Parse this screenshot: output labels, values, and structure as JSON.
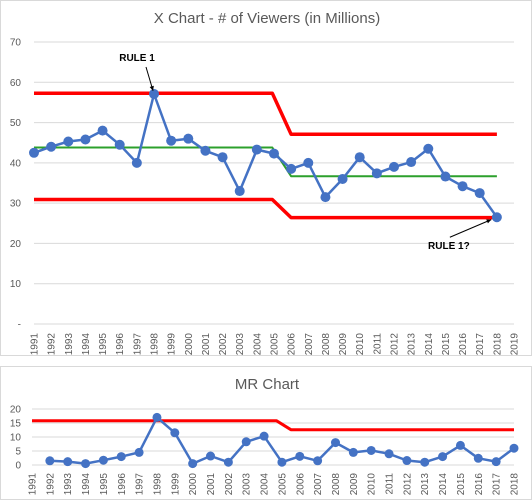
{
  "colors": {
    "data": "#4472c4",
    "limits": "#ff0000",
    "center": "#2ca02c",
    "grid": "#d9d9d9",
    "text": "#595959"
  },
  "chart_data": [
    {
      "type": "line",
      "title": "X Chart - # of Viewers (in Millions)",
      "x_ticks": [
        "1991",
        "1992",
        "1993",
        "1994",
        "1995",
        "1996",
        "1997",
        "1998",
        "1999",
        "2000",
        "2001",
        "2002",
        "2003",
        "2004",
        "2005",
        "2006",
        "2007",
        "2008",
        "2009",
        "2010",
        "2011",
        "2012",
        "2013",
        "2014",
        "2015",
        "2016",
        "2017",
        "2018",
        "2019"
      ],
      "y_ticks": [
        "-",
        "10",
        "20",
        "30",
        "40",
        "50",
        "60",
        "70"
      ],
      "ylim": [
        0,
        70
      ],
      "xlim": [
        1991,
        2019
      ],
      "grid": "horizontal",
      "series": [
        {
          "role": "data",
          "x": [
            1991,
            1992,
            1993,
            1994,
            1995,
            1996,
            1997,
            1998,
            1999,
            2000,
            2001,
            2002,
            2003,
            2004,
            2005,
            2006,
            2007,
            2008,
            2009,
            2010,
            2011,
            2012,
            2013,
            2014,
            2015,
            2016,
            2017,
            2018
          ],
          "values": [
            42.5,
            44,
            45.3,
            45.8,
            48,
            44.5,
            40,
            57.1,
            45.5,
            46,
            43,
            41.4,
            33,
            43.3,
            42.3,
            38.5,
            40,
            31.5,
            36,
            41.4,
            37.4,
            39,
            40.2,
            43.5,
            36.6,
            34.2,
            32.5,
            26.5
          ]
        },
        {
          "role": "upper-limit",
          "x": [
            1991,
            2004.9,
            2006,
            2018
          ],
          "values": [
            57.3,
            57.3,
            47.1,
            47.1
          ]
        },
        {
          "role": "center-line",
          "x": [
            1991,
            2004.9,
            2006,
            2018
          ],
          "values": [
            43.8,
            43.8,
            36.7,
            36.7
          ]
        },
        {
          "role": "lower-limit",
          "x": [
            1991,
            2004.9,
            2006,
            2018
          ],
          "values": [
            30.9,
            30.9,
            26.4,
            26.4
          ]
        }
      ],
      "annotations": [
        {
          "text": "RULE 1",
          "x": 1998,
          "y": 57.1
        },
        {
          "text": "RULE 1?",
          "x": 2018,
          "y": 26.5
        }
      ]
    },
    {
      "type": "line",
      "title": "MR Chart",
      "x_ticks": [
        "1991",
        "1992",
        "1993",
        "1994",
        "1995",
        "1996",
        "1997",
        "1998",
        "1999",
        "2000",
        "2001",
        "2002",
        "2003",
        "2004",
        "2005",
        "2006",
        "2007",
        "2008",
        "2009",
        "2010",
        "2011",
        "2012",
        "2013",
        "2014",
        "2015",
        "2016",
        "2017",
        "2018"
      ],
      "y_ticks": [
        "0",
        "5",
        "10",
        "15",
        "20"
      ],
      "ylim": [
        0,
        20
      ],
      "xlim": [
        1991,
        2018
      ],
      "grid": "horizontal",
      "series": [
        {
          "role": "data",
          "x": [
            1992,
            1993,
            1994,
            1995,
            1996,
            1997,
            1998,
            1999,
            2000,
            2001,
            2002,
            2003,
            2004,
            2005,
            2006,
            2007,
            2008,
            2009,
            2010,
            2011,
            2012,
            2013,
            2014,
            2015,
            2016,
            2017,
            2018
          ],
          "values": [
            1.5,
            1.2,
            0.5,
            1.7,
            3,
            4.5,
            17,
            11.5,
            0.5,
            3.2,
            1,
            8.3,
            10.3,
            1,
            3.1,
            1.5,
            8,
            4.5,
            5.2,
            4,
            1.6,
            1,
            3,
            7,
            2.4,
            1.2,
            6
          ]
        },
        {
          "role": "upper-limit",
          "x": [
            1991,
            2004.7,
            2005.5,
            2018
          ],
          "values": [
            15.8,
            15.8,
            12.6,
            12.6
          ]
        }
      ]
    }
  ]
}
